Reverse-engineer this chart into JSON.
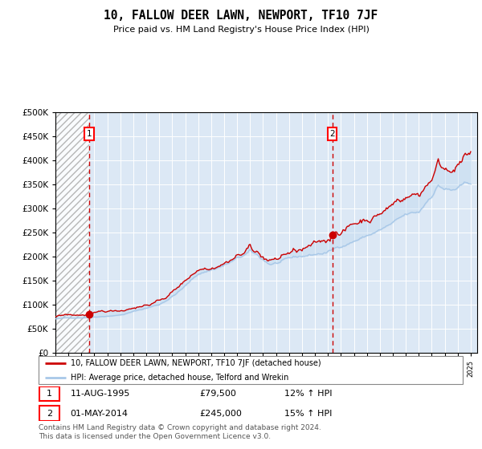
{
  "title": "10, FALLOW DEER LAWN, NEWPORT, TF10 7JF",
  "subtitle": "Price paid vs. HM Land Registry's House Price Index (HPI)",
  "legend_line1": "10, FALLOW DEER LAWN, NEWPORT, TF10 7JF (detached house)",
  "legend_line2": "HPI: Average price, detached house, Telford and Wrekin",
  "annotation1_date": "11-AUG-1995",
  "annotation1_price": "£79,500",
  "annotation1_hpi": "12% ↑ HPI",
  "annotation2_date": "01-MAY-2014",
  "annotation2_price": "£245,000",
  "annotation2_hpi": "15% ↑ HPI",
  "footer": "Contains HM Land Registry data © Crown copyright and database right 2024.\nThis data is licensed under the Open Government Licence v3.0.",
  "hpi_color": "#a8c8e8",
  "property_color": "#cc0000",
  "background_color": "#dce8f5",
  "ylim": [
    0,
    500000
  ],
  "yticks": [
    0,
    50000,
    100000,
    150000,
    200000,
    250000,
    300000,
    350000,
    400000,
    450000,
    500000
  ],
  "sale1_year": 1995.62,
  "sale1_value": 79500,
  "sale2_year": 2014.33,
  "sale2_value": 245000,
  "start_year": 1993,
  "end_year": 2025
}
